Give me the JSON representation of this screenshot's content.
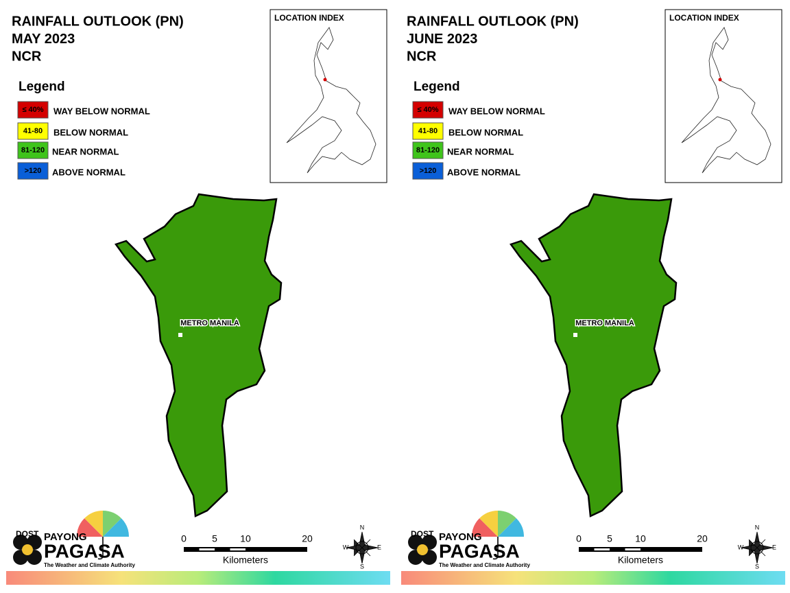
{
  "panels": [
    {
      "title": [
        "RAINFALL OUTLOOK (PN)",
        "MAY 2023",
        "NCR"
      ],
      "legend": {
        "title": "Legend",
        "items": [
          {
            "range": "≤ 40%",
            "label": "WAY BELOW NORMAL",
            "color": "#d40000"
          },
          {
            "range": "41-80",
            "label": "BELOW NORMAL",
            "color": "#ffff00"
          },
          {
            "range": "81-120",
            "label": "NEAR NORMAL",
            "color": "#3fc41b"
          },
          {
            "range": ">120",
            "label": "ABOVE NORMAL",
            "color": "#0a5fd8"
          }
        ]
      },
      "region_color": "#3a9a0a",
      "inset_title": "LOCATION INDEX",
      "region_label": "METRO MANILA",
      "scale": {
        "ticks": [
          0,
          5,
          10,
          20
        ],
        "unit": "Kilometers"
      },
      "compass": {
        "n": "N",
        "e": "E",
        "s": "S",
        "w": "W"
      },
      "logo": {
        "dost": "DOST",
        "payong": "PAYONG",
        "pagasa": "PAGASA",
        "tagline": "The Weather and Climate Authority"
      }
    },
    {
      "title": [
        "RAINFALL OUTLOOK (PN)",
        "JUNE 2023",
        "NCR"
      ],
      "legend": {
        "title": "Legend",
        "items": [
          {
            "range": "≤ 40%",
            "label": "WAY BELOW NORMAL",
            "color": "#d40000"
          },
          {
            "range": "41-80",
            "label": "BELOW NORMAL",
            "color": "#ffff00"
          },
          {
            "range": "81-120",
            "label": "NEAR NORMAL",
            "color": "#3fc41b"
          },
          {
            "range": ">120",
            "label": "ABOVE NORMAL",
            "color": "#0a5fd8"
          }
        ]
      },
      "region_color": "#3a9a0a",
      "inset_title": "LOCATION INDEX",
      "region_label": "METRO MANILA",
      "scale": {
        "ticks": [
          0,
          5,
          10,
          20
        ],
        "unit": "Kilometers"
      },
      "compass": {
        "n": "N",
        "e": "E",
        "s": "S",
        "w": "W"
      },
      "logo": {
        "dost": "DOST",
        "payong": "PAYONG",
        "pagasa": "PAGASA",
        "tagline": "The Weather and Climate Authority"
      }
    }
  ]
}
